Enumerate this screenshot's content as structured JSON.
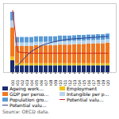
{
  "chart_data": {
    "type": "bar",
    "stacked": true,
    "categories": [
      "2000",
      "2001",
      "2002",
      "2003",
      "2004",
      "2005",
      "2006",
      "2007",
      "2008",
      "2009",
      "2010",
      "2011",
      "2012",
      "2013",
      "2014",
      "2015",
      "2016",
      "2017",
      "2018",
      "2019",
      "2020"
    ],
    "series": [
      {
        "name": "Ageing work...",
        "type": "bar",
        "color": "#1a2d6e",
        "values": [
          0.35,
          0.2,
          0.2,
          0.2,
          0.2,
          0.2,
          0.2,
          0.2,
          0.2,
          0.2,
          0.2,
          0.2,
          0.2,
          0.2,
          0.2,
          0.2,
          0.2,
          0.2,
          0.2,
          0.2,
          0.2
        ]
      },
      {
        "name": "Employment",
        "type": "bar",
        "color": "#f0c419",
        "values": [
          0.1,
          0.06,
          0.06,
          0.06,
          0.06,
          0.06,
          0.06,
          0.06,
          0.06,
          0.06,
          0.06,
          0.06,
          0.06,
          0.06,
          0.06,
          0.06,
          0.06,
          0.06,
          0.06,
          0.06,
          0.06
        ]
      },
      {
        "name": "GDP per perso...",
        "type": "bar",
        "color": "#f07820",
        "values": [
          0.85,
          0.5,
          0.5,
          0.5,
          0.5,
          0.52,
          0.52,
          0.52,
          0.52,
          0.52,
          0.54,
          0.54,
          0.54,
          0.55,
          0.56,
          0.56,
          0.57,
          0.57,
          0.58,
          0.58,
          0.6
        ]
      },
      {
        "name": "Intangible per p...",
        "type": "bar",
        "color": "#b8d4ea",
        "values": [
          0.2,
          0.1,
          0.1,
          0.1,
          0.1,
          0.1,
          0.1,
          0.1,
          0.1,
          0.1,
          0.1,
          0.1,
          0.1,
          0.1,
          0.1,
          0.1,
          0.1,
          0.1,
          0.1,
          0.1,
          0.1
        ]
      },
      {
        "name": "Population gro...",
        "type": "bar",
        "color": "#5b9bd5",
        "values": [
          0.25,
          0.16,
          0.16,
          0.16,
          0.16,
          0.16,
          0.16,
          0.16,
          0.16,
          0.16,
          0.16,
          0.16,
          0.16,
          0.16,
          0.16,
          0.16,
          0.16,
          0.16,
          0.16,
          0.16,
          0.16
        ]
      },
      {
        "name": "Potential valu...",
        "type": "line",
        "color": "#cc2222",
        "values": [
          1.8,
          0.6,
          0.58,
          0.57,
          0.56,
          0.56,
          0.56,
          0.56,
          0.56,
          0.56,
          0.56,
          0.56,
          0.56,
          0.56,
          0.56,
          0.56,
          0.56,
          0.56,
          0.56,
          0.56,
          0.56
        ]
      },
      {
        "name": "Potential valu...",
        "type": "line",
        "color": "#2e4090",
        "values": [
          0.1,
          0.2,
          0.35,
          0.5,
          0.62,
          0.7,
          0.78,
          0.83,
          0.87,
          0.9,
          0.93,
          0.95,
          0.97,
          0.98,
          0.99,
          1.0,
          1.01,
          1.02,
          1.03,
          1.04,
          1.05
        ]
      }
    ],
    "ylim": [
      0,
      2.0
    ],
    "tick_labels": "x",
    "legend": "bottom",
    "annotations": [
      "Source: OECD data."
    ]
  }
}
